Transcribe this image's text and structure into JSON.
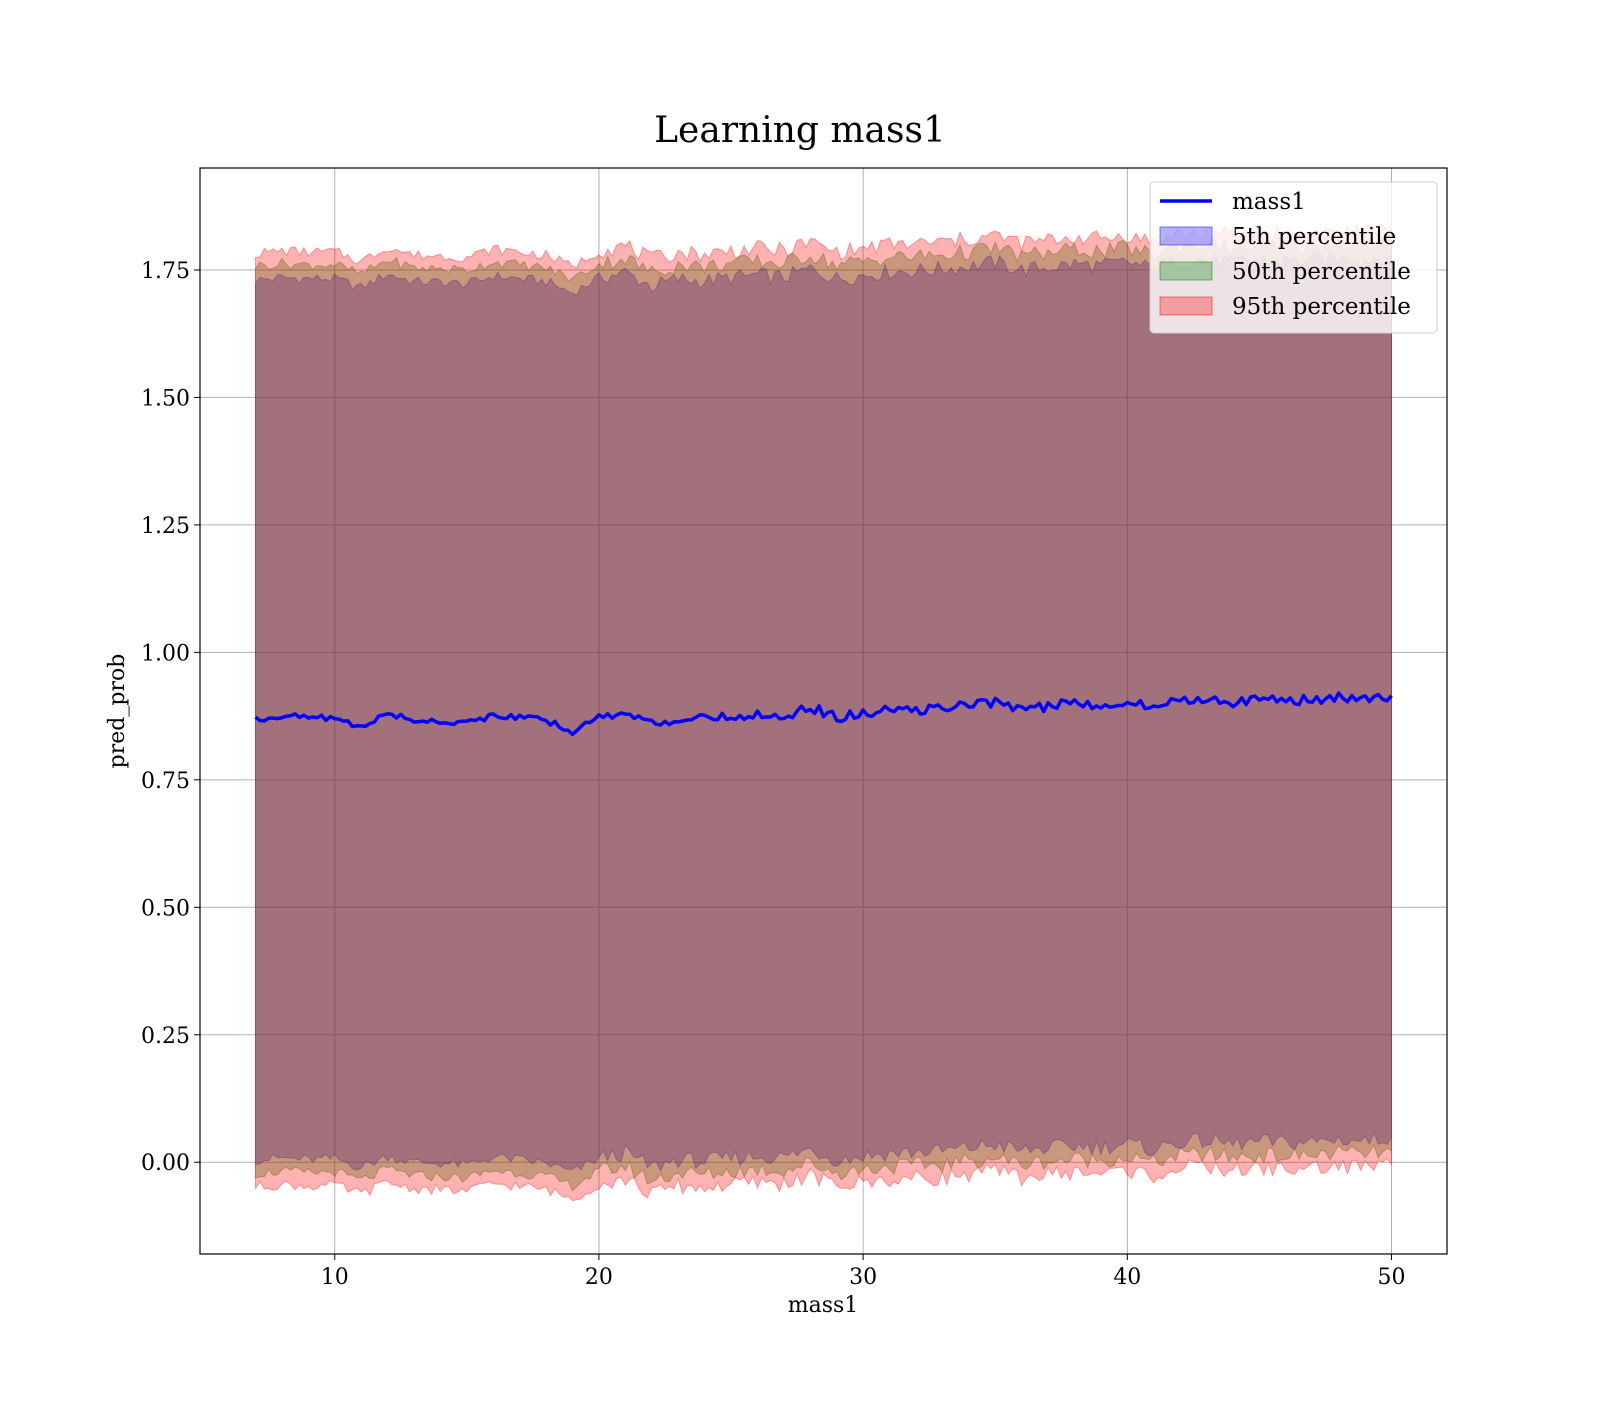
{
  "chart_data": {
    "type": "line",
    "title": "Learning mass1",
    "xlabel": "mass1",
    "ylabel": "pred_prob",
    "xlim": [
      4.9,
      52.1
    ],
    "ylim": [
      -0.18,
      1.95
    ],
    "grid": true,
    "legend_position": "top-right",
    "xticks": [
      10,
      20,
      30,
      40,
      50
    ],
    "xtick_labels": [
      "10",
      "20",
      "30",
      "40",
      "50"
    ],
    "yticks": [
      0.0,
      0.25,
      0.5,
      0.75,
      1.0,
      1.25,
      1.5,
      1.75
    ],
    "ytick_labels": [
      "0.00",
      "0.25",
      "0.50",
      "0.75",
      "1.00",
      "1.25",
      "1.50",
      "1.75"
    ],
    "x": [
      7,
      8,
      9,
      10,
      11,
      12,
      13,
      14,
      15,
      16,
      17,
      18,
      19,
      20,
      21,
      22,
      23,
      24,
      25,
      26,
      27,
      28,
      29,
      30,
      31,
      32,
      33,
      34,
      35,
      36,
      37,
      38,
      39,
      40,
      41,
      42,
      43,
      44,
      45,
      46,
      47,
      48,
      49,
      50
    ],
    "series": [
      {
        "name": "mass1",
        "kind": "line",
        "color": "#0000ff",
        "values": [
          0.868,
          0.876,
          0.872,
          0.872,
          0.852,
          0.881,
          0.866,
          0.865,
          0.862,
          0.877,
          0.872,
          0.866,
          0.845,
          0.873,
          0.885,
          0.858,
          0.871,
          0.868,
          0.873,
          0.879,
          0.874,
          0.893,
          0.872,
          0.879,
          0.886,
          0.887,
          0.891,
          0.896,
          0.903,
          0.889,
          0.894,
          0.901,
          0.897,
          0.904,
          0.891,
          0.908,
          0.909,
          0.903,
          0.908,
          0.906,
          0.907,
          0.912,
          0.908,
          0.915
        ]
      },
      {
        "name": "5th percentile",
        "kind": "band",
        "color": "#0000ff",
        "opacity": 0.3,
        "lower": [
          0.005,
          0.008,
          0.005,
          0.007,
          -0.01,
          0.012,
          0.0,
          -0.002,
          -0.005,
          0.01,
          0.005,
          -0.002,
          -0.02,
          0.008,
          0.018,
          -0.01,
          0.005,
          0.002,
          0.008,
          0.012,
          0.01,
          0.025,
          0.005,
          0.012,
          0.018,
          0.02,
          0.022,
          0.028,
          0.035,
          0.022,
          0.028,
          0.032,
          0.03,
          0.036,
          0.025,
          0.04,
          0.042,
          0.036,
          0.04,
          0.038,
          0.04,
          0.045,
          0.042,
          0.048
        ],
        "upper": [
          1.73,
          1.735,
          1.733,
          1.733,
          1.715,
          1.742,
          1.727,
          1.726,
          1.722,
          1.738,
          1.733,
          1.727,
          1.705,
          1.735,
          1.745,
          1.718,
          1.732,
          1.728,
          1.735,
          1.74,
          1.735,
          1.752,
          1.733,
          1.74,
          1.747,
          1.748,
          1.752,
          1.757,
          1.765,
          1.75,
          1.755,
          1.762,
          1.758,
          1.765,
          1.752,
          1.77,
          1.77,
          1.765,
          1.77,
          1.767,
          1.769,
          1.774,
          1.77,
          1.777
        ]
      },
      {
        "name": "50th percentile",
        "kind": "band",
        "color": "#008000",
        "opacity": 0.3,
        "lower": [
          -0.022,
          -0.018,
          -0.021,
          -0.019,
          -0.036,
          -0.014,
          -0.026,
          -0.028,
          -0.031,
          -0.016,
          -0.021,
          -0.028,
          -0.046,
          -0.018,
          -0.008,
          -0.036,
          -0.021,
          -0.024,
          -0.018,
          -0.014,
          -0.016,
          -0.001,
          -0.021,
          -0.014,
          -0.008,
          -0.006,
          -0.004,
          0.002,
          0.009,
          -0.004,
          0.002,
          0.006,
          0.004,
          0.01,
          -0.001,
          0.014,
          0.016,
          0.01,
          0.014,
          0.012,
          0.014,
          0.019,
          0.016,
          0.022
        ],
        "upper": [
          1.758,
          1.763,
          1.76,
          1.761,
          1.742,
          1.77,
          1.754,
          1.753,
          1.75,
          1.766,
          1.76,
          1.754,
          1.732,
          1.762,
          1.773,
          1.745,
          1.76,
          1.756,
          1.763,
          1.767,
          1.763,
          1.78,
          1.76,
          1.767,
          1.775,
          1.776,
          1.78,
          1.785,
          1.793,
          1.778,
          1.783,
          1.79,
          1.786,
          1.793,
          1.78,
          1.798,
          1.798,
          1.793,
          1.798,
          1.795,
          1.797,
          1.802,
          1.798,
          1.805
        ]
      },
      {
        "name": "95th percentile",
        "kind": "band",
        "color": "#ff0000",
        "opacity": 0.3,
        "lower": [
          -0.048,
          -0.044,
          -0.047,
          -0.045,
          -0.062,
          -0.04,
          -0.052,
          -0.054,
          -0.057,
          -0.042,
          -0.047,
          -0.054,
          -0.072,
          -0.044,
          -0.034,
          -0.062,
          -0.047,
          -0.05,
          -0.044,
          -0.04,
          -0.042,
          -0.027,
          -0.047,
          -0.04,
          -0.034,
          -0.032,
          -0.03,
          -0.024,
          -0.017,
          -0.03,
          -0.024,
          -0.02,
          -0.022,
          -0.016,
          -0.027,
          -0.012,
          -0.01,
          -0.016,
          -0.012,
          -0.014,
          -0.012,
          -0.007,
          -0.01,
          -0.004
        ],
        "upper": [
          1.782,
          1.788,
          1.785,
          1.786,
          1.767,
          1.795,
          1.779,
          1.778,
          1.775,
          1.791,
          1.785,
          1.779,
          1.757,
          1.787,
          1.798,
          1.77,
          1.785,
          1.781,
          1.788,
          1.792,
          1.788,
          1.805,
          1.785,
          1.792,
          1.8,
          1.801,
          1.805,
          1.81,
          1.818,
          1.803,
          1.808,
          1.815,
          1.811,
          1.818,
          1.805,
          1.823,
          1.823,
          1.818,
          1.823,
          1.82,
          1.822,
          1.827,
          1.823,
          1.83
        ]
      }
    ]
  }
}
